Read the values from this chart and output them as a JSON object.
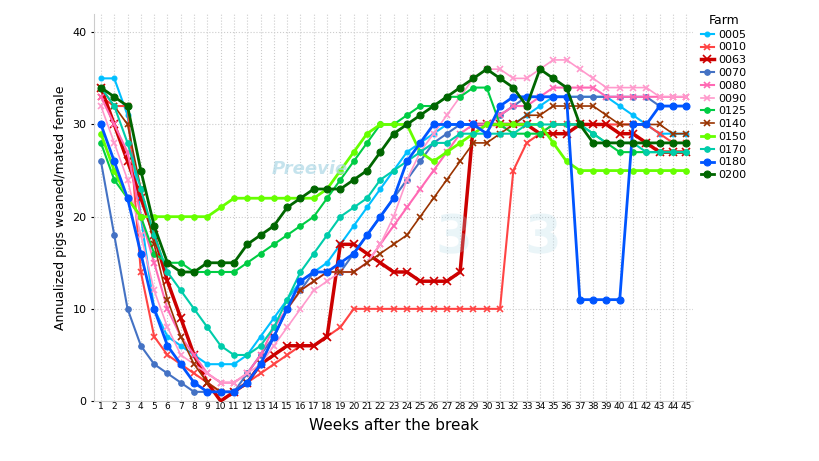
{
  "title": "",
  "xlabel": "Weeks after the break",
  "ylabel": "Annualized pigs weaned/mated female",
  "ylim": [
    0,
    42
  ],
  "yticks": [
    0,
    10,
    20,
    30,
    40
  ],
  "weeks": [
    1,
    2,
    3,
    4,
    5,
    6,
    7,
    8,
    9,
    10,
    11,
    12,
    13,
    14,
    15,
    16,
    17,
    18,
    19,
    20,
    21,
    22,
    23,
    24,
    25,
    26,
    27,
    28,
    29,
    30,
    31,
    32,
    33,
    34,
    35,
    36,
    37,
    38,
    39,
    40,
    41,
    42,
    43,
    44,
    45
  ],
  "farms": {
    "0005": {
      "color": "#00BFFF",
      "marker": "o",
      "markersize": 3.5,
      "linewidth": 1.5,
      "data": [
        35,
        35,
        31,
        20,
        10,
        7,
        6,
        5,
        4,
        4,
        4,
        5,
        7,
        9,
        11,
        13,
        14,
        15,
        17,
        19,
        21,
        23,
        25,
        27,
        28,
        29,
        30,
        30,
        30,
        30,
        30,
        30,
        31,
        32,
        33,
        33,
        33,
        33,
        33,
        32,
        31,
        30,
        29,
        29,
        29
      ]
    },
    "0010": {
      "color": "#FF4444",
      "marker": "x",
      "markersize": 5,
      "linewidth": 1.5,
      "data": [
        33,
        32,
        32,
        14,
        7,
        5,
        4,
        3,
        2,
        1,
        1,
        2,
        3,
        4,
        5,
        6,
        6,
        7,
        8,
        10,
        10,
        10,
        10,
        10,
        10,
        10,
        10,
        10,
        10,
        10,
        10,
        25,
        28,
        29,
        30,
        30,
        30,
        30,
        30,
        30,
        30,
        30,
        29,
        28,
        28
      ]
    },
    "0063": {
      "color": "#CC0000",
      "marker": "x",
      "markersize": 6,
      "linewidth": 2.5,
      "data": [
        34,
        30,
        26,
        22,
        18,
        13,
        9,
        5,
        2,
        0,
        1,
        2,
        4,
        5,
        6,
        6,
        6,
        7,
        17,
        17,
        16,
        15,
        14,
        14,
        13,
        13,
        13,
        14,
        30,
        30,
        30,
        30,
        30,
        29,
        29,
        29,
        30,
        30,
        30,
        29,
        29,
        28,
        27,
        27,
        27
      ]
    },
    "0070": {
      "color": "#4472C4",
      "marker": "o",
      "markersize": 4,
      "linewidth": 1.5,
      "data": [
        26,
        18,
        10,
        6,
        4,
        3,
        2,
        1,
        1,
        1,
        1,
        3,
        5,
        7,
        10,
        12,
        14,
        14,
        14,
        16,
        18,
        20,
        22,
        24,
        26,
        28,
        29,
        30,
        30,
        30,
        31,
        32,
        33,
        33,
        33,
        33,
        33,
        33,
        33,
        33,
        33,
        33,
        32,
        32,
        32
      ]
    },
    "0080": {
      "color": "#FF69B4",
      "marker": "x",
      "markersize": 5,
      "linewidth": 1.5,
      "data": [
        33,
        30,
        27,
        20,
        15,
        10,
        7,
        5,
        3,
        2,
        2,
        3,
        5,
        8,
        10,
        12,
        13,
        14,
        14,
        14,
        15,
        17,
        19,
        21,
        23,
        25,
        27,
        29,
        30,
        30,
        31,
        32,
        32,
        33,
        34,
        34,
        34,
        34,
        33,
        33,
        33,
        33,
        33,
        33,
        33
      ]
    },
    "0090": {
      "color": "#FF99CC",
      "marker": "x",
      "markersize": 4,
      "linewidth": 1.2,
      "data": [
        32,
        28,
        24,
        18,
        12,
        8,
        5,
        4,
        3,
        2,
        2,
        3,
        4,
        6,
        8,
        10,
        12,
        13,
        14,
        14,
        15,
        17,
        20,
        24,
        27,
        29,
        31,
        33,
        35,
        36,
        36,
        35,
        35,
        36,
        37,
        37,
        36,
        35,
        34,
        34,
        34,
        34,
        33,
        33,
        33
      ]
    },
    "0125": {
      "color": "#00CC44",
      "marker": "o",
      "markersize": 4,
      "linewidth": 1.5,
      "data": [
        28,
        24,
        22,
        20,
        16,
        15,
        15,
        14,
        14,
        14,
        14,
        15,
        16,
        17,
        18,
        19,
        20,
        22,
        24,
        26,
        28,
        30,
        30,
        31,
        32,
        32,
        33,
        33,
        34,
        34,
        30,
        29,
        29,
        29,
        30,
        30,
        30,
        29,
        28,
        27,
        27,
        27,
        27,
        27,
        27
      ]
    },
    "0140": {
      "color": "#993300",
      "marker": "x",
      "markersize": 4,
      "linewidth": 1.2,
      "data": [
        34,
        32,
        30,
        23,
        17,
        11,
        7,
        4,
        2,
        1,
        1,
        2,
        4,
        7,
        10,
        12,
        13,
        14,
        14,
        14,
        15,
        16,
        17,
        18,
        20,
        22,
        24,
        26,
        28,
        28,
        29,
        30,
        31,
        31,
        32,
        32,
        32,
        32,
        31,
        30,
        30,
        30,
        30,
        29,
        29
      ]
    },
    "0150": {
      "color": "#66FF00",
      "marker": "o",
      "markersize": 4,
      "linewidth": 2.0,
      "data": [
        29,
        25,
        22,
        20,
        20,
        20,
        20,
        20,
        20,
        21,
        22,
        22,
        22,
        22,
        22,
        22,
        22,
        23,
        25,
        27,
        29,
        30,
        30,
        30,
        27,
        26,
        27,
        28,
        29,
        30,
        30,
        30,
        30,
        30,
        28,
        26,
        25,
        25,
        25,
        25,
        25,
        25,
        25,
        25,
        25
      ]
    },
    "0170": {
      "color": "#00CCAA",
      "marker": "o",
      "markersize": 4,
      "linewidth": 1.5,
      "data": [
        34,
        32,
        28,
        23,
        18,
        14,
        12,
        10,
        8,
        6,
        5,
        5,
        6,
        8,
        11,
        14,
        16,
        18,
        20,
        21,
        22,
        24,
        25,
        26,
        27,
        28,
        28,
        29,
        29,
        29,
        29,
        29,
        30,
        30,
        30,
        30,
        30,
        29,
        28,
        28,
        28,
        27,
        27,
        27,
        27
      ]
    },
    "0180": {
      "color": "#0055FF",
      "marker": "o",
      "markersize": 5,
      "linewidth": 2.0,
      "data": [
        30,
        26,
        22,
        16,
        10,
        6,
        4,
        2,
        1,
        1,
        1,
        2,
        4,
        7,
        10,
        13,
        14,
        14,
        15,
        16,
        18,
        20,
        22,
        26,
        28,
        30,
        30,
        30,
        30,
        29,
        32,
        33,
        33,
        33,
        33,
        33,
        11,
        11,
        11,
        11,
        30,
        30,
        32,
        32,
        32
      ]
    },
    "0200": {
      "color": "#006600",
      "marker": "o",
      "markersize": 5,
      "linewidth": 2.0,
      "data": [
        34,
        33,
        32,
        25,
        19,
        15,
        14,
        14,
        15,
        15,
        15,
        17,
        18,
        19,
        21,
        22,
        23,
        23,
        23,
        24,
        25,
        27,
        29,
        30,
        31,
        32,
        33,
        34,
        35,
        36,
        35,
        34,
        32,
        36,
        35,
        34,
        30,
        28,
        28,
        28,
        28,
        28,
        28,
        28,
        28
      ]
    }
  },
  "legend_labels": [
    "0005",
    "0010",
    "0063",
    "0070",
    "0080",
    "0090",
    "0125",
    "0140",
    "0150",
    "0170",
    "0180",
    "0200"
  ],
  "background_color": "#FFFFFF",
  "grid_color": "#CCCCCC",
  "grid_linestyle": ":"
}
